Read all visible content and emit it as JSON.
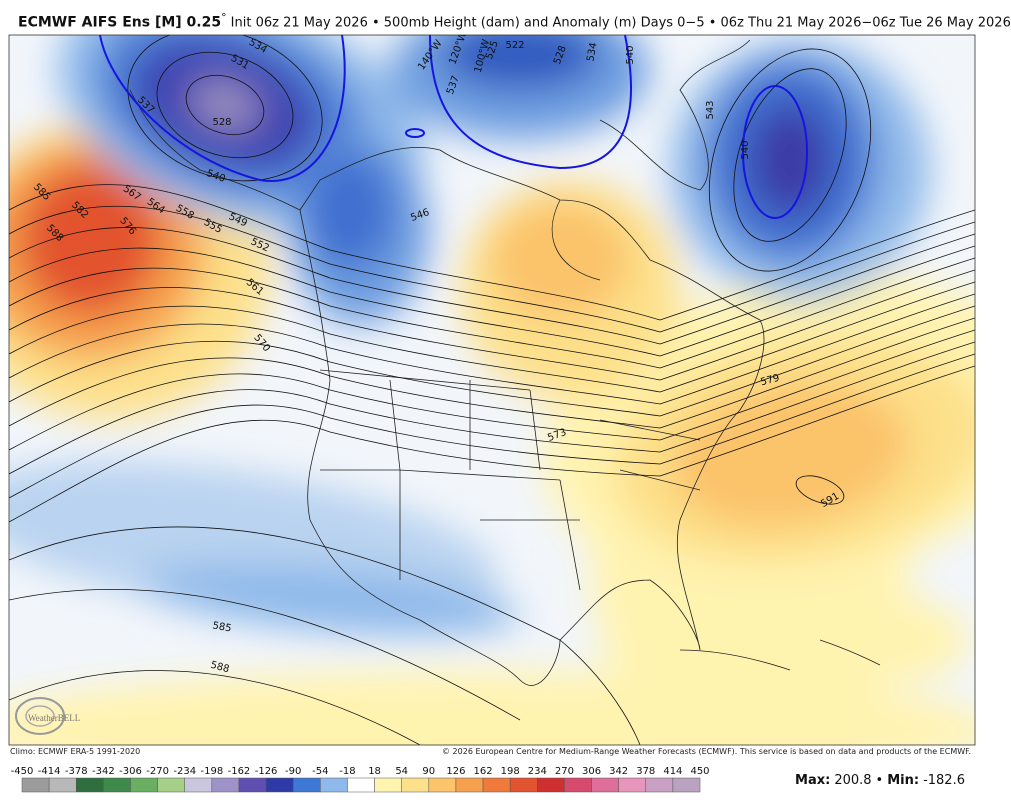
{
  "header": {
    "title": "ECMWF AIFS Ens [M] 0.25",
    "degree": "°",
    "subtitle": "Init 06z 21 May 2026 • 500mb Height (dam) and Anomaly (m) Days 0−5 • 06z Thu 21 May 2026−06z Tue 26 May 2026"
  },
  "map": {
    "contour_labels": [
      534,
      531,
      537,
      528,
      540,
      522,
      525,
      537,
      528,
      534,
      540,
      543,
      540,
      585,
      582,
      588,
      576,
      567,
      564,
      558,
      555,
      549,
      552,
      546,
      561,
      570,
      579,
      591,
      573,
      585,
      588
    ],
    "meridian_labels": [
      "140°W",
      "120°W",
      "100°W"
    ],
    "logo": "WeatherBELL"
  },
  "footer": {
    "climo": "Climo: ECMWF ERA-5 1991-2020",
    "copyright": "© 2026 European Centre for Medium-Range Weather Forecasts (ECMWF). This service is based on data and products of the ECMWF."
  },
  "colorbar": {
    "ticks": [
      -450,
      -414,
      -378,
      -342,
      -306,
      -270,
      -234,
      -198,
      -162,
      -126,
      -90,
      -54,
      -18,
      18,
      54,
      90,
      126,
      162,
      198,
      234,
      270,
      306,
      342,
      378,
      414,
      450
    ],
    "colors": [
      "#9c9c9c",
      "#b8b8b8",
      "#2f6f3e",
      "#3d8a4a",
      "#6aae62",
      "#a6cf8a",
      "#c9c6de",
      "#9e93c9",
      "#5e4fb0",
      "#2e3aa8",
      "#3f78d4",
      "#8fb9ea",
      "#ffffff",
      "#fff3b0",
      "#fde08a",
      "#fbc36a",
      "#f6a04e",
      "#ef7a3c",
      "#e2532f",
      "#cf2f2f",
      "#d64a6e",
      "#df6f9a",
      "#e795bb",
      "#c9a0c4",
      "#b9a3c0"
    ]
  },
  "stats": {
    "max_label": "Max:",
    "max": 200.8,
    "separator": "•",
    "min_label": "Min:",
    "min": -182.6
  }
}
